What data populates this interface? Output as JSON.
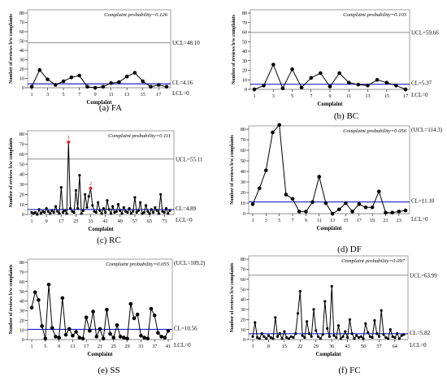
{
  "chart_data": [
    {
      "type": "line",
      "panel_label": "(a) FA",
      "annotation": "Complaint probability=0.126",
      "xlabel": "Complaint",
      "ylabel": "Number of reviews b/w complaints",
      "ylim": [
        0,
        80
      ],
      "yticks": [
        0,
        10,
        20,
        30,
        40,
        50,
        60,
        70,
        80
      ],
      "xticks": [
        "1",
        "3",
        "5",
        "7",
        "9",
        "11",
        "13",
        "15",
        "17"
      ],
      "x": [
        1,
        2,
        3,
        4,
        5,
        6,
        7,
        8,
        9,
        10,
        11,
        12,
        13,
        14,
        15,
        16,
        17,
        18
      ],
      "values": [
        1,
        19,
        9,
        3,
        7,
        11,
        13,
        1,
        0,
        1,
        5,
        6,
        12,
        16,
        7,
        1,
        3,
        1
      ],
      "ucl": {
        "value": 48.1,
        "label": "UCL=48.10"
      },
      "cl": {
        "value": 4.16,
        "label": "CL=4.16"
      },
      "lcl": {
        "value": 0,
        "label": "LCL=0"
      }
    },
    {
      "type": "line",
      "panel_label": "(b) BC",
      "annotation": "Complaint probability=0.103",
      "xlabel": "Complaint",
      "ylabel": "Number of reviews b/w complaints",
      "ylim": [
        0,
        80
      ],
      "yticks": [
        0,
        10,
        20,
        30,
        40,
        50,
        60,
        70,
        80
      ],
      "xticks": [
        "1",
        "3",
        "5",
        "7",
        "9",
        "11",
        "13",
        "15",
        "17"
      ],
      "x": [
        1,
        2,
        3,
        4,
        5,
        6,
        7,
        8,
        9,
        10,
        11,
        12,
        13,
        14,
        15,
        16,
        17
      ],
      "values": [
        0,
        4,
        26,
        1,
        21,
        2,
        12,
        17,
        3,
        17,
        7,
        5,
        4,
        10,
        7,
        4,
        0
      ],
      "ucl": {
        "value": 59.66,
        "label": "UCL=59.66"
      },
      "cl": {
        "value": 5.37,
        "label": "CL=5.37"
      },
      "lcl": {
        "value": 0,
        "label": "LCL=0"
      }
    },
    {
      "type": "line",
      "panel_label": "(c) RC",
      "annotation": "Complaint probability=0.111",
      "xlabel": "Complaint",
      "ylabel": "Number of reviews b/w complaints",
      "ylim": [
        0,
        80
      ],
      "yticks": [
        0,
        10,
        20,
        30,
        40,
        50,
        60,
        70,
        80
      ],
      "xticks": [
        "1",
        "9",
        "17",
        "25",
        "33",
        "41",
        "49",
        "57",
        "65",
        "73"
      ],
      "x": [
        1,
        2,
        3,
        4,
        5,
        6,
        7,
        8,
        9,
        10,
        11,
        12,
        13,
        14,
        15,
        16,
        17,
        18,
        19,
        20,
        21,
        22,
        23,
        24,
        25,
        26,
        27,
        28,
        29,
        30,
        31,
        32,
        33,
        34,
        35,
        36,
        37,
        38,
        39,
        40,
        41,
        42,
        43,
        44,
        45,
        46,
        47,
        48,
        49,
        50,
        51,
        52,
        53,
        54,
        55,
        56,
        57,
        58,
        59,
        60,
        61,
        62,
        63,
        64,
        65,
        66,
        67,
        68,
        69,
        70,
        71,
        72,
        73,
        74,
        75,
        76
      ],
      "values": [
        2,
        1,
        2,
        0,
        5,
        1,
        3,
        2,
        6,
        3,
        1,
        4,
        2,
        8,
        3,
        1,
        27,
        2,
        4,
        1,
        72,
        6,
        3,
        2,
        24,
        6,
        39,
        1,
        4,
        20,
        7,
        18,
        26,
        9,
        3,
        2,
        12,
        4,
        1,
        6,
        2,
        14,
        5,
        1,
        8,
        2,
        3,
        10,
        4,
        1,
        7,
        3,
        2,
        6,
        1,
        3,
        17,
        2,
        4,
        12,
        1,
        2,
        9,
        3,
        1,
        5,
        2,
        7,
        4,
        1,
        20,
        3,
        2,
        6,
        1,
        4
      ],
      "highlighted_points": [
        {
          "x": 21,
          "value": 72,
          "label": "1"
        },
        {
          "x": 33,
          "value": 26,
          "label": "2"
        }
      ],
      "ucl": {
        "value": 55.11,
        "label": "UCL=55.11"
      },
      "cl": {
        "value": 4.89,
        "label": "CL=4.89"
      },
      "lcl": {
        "value": 0,
        "label": "LCL=0"
      }
    },
    {
      "type": "line",
      "panel_label": "(d) DF",
      "annotation": "Complaint probability=0.056",
      "xlabel": "Complaint",
      "ylabel": "Number of reviews b/w complaints",
      "ylim": [
        0,
        80
      ],
      "yticks": [
        0,
        10,
        20,
        30,
        40,
        50,
        60,
        70,
        80
      ],
      "xticks": [
        "1",
        "3",
        "5",
        "7",
        "9",
        "11",
        "13",
        "15",
        "17",
        "19",
        "21",
        "23"
      ],
      "x": [
        1,
        2,
        3,
        4,
        5,
        6,
        7,
        8,
        9,
        10,
        11,
        12,
        13,
        14,
        15,
        16,
        17,
        18,
        19,
        20,
        21,
        22,
        23,
        24
      ],
      "values": [
        9,
        24,
        41,
        77,
        84,
        18,
        14,
        2,
        2,
        11,
        35,
        10,
        0,
        4,
        10,
        2,
        9,
        6,
        6,
        21,
        1,
        1,
        2,
        3
      ],
      "ucl": {
        "value": 114.3,
        "label": "(UCL=114.3)"
      },
      "cl": {
        "value": 11.1,
        "label": "CL=11.10"
      },
      "lcl": {
        "value": 0,
        "label": "LCL=0"
      }
    },
    {
      "type": "line",
      "panel_label": "(e) SS",
      "annotation": "Complaint probability=0.055",
      "xlabel": "Complaint",
      "ylabel": "Number of reviews b/w complaints",
      "ylim": [
        0,
        80
      ],
      "yticks": [
        0,
        10,
        20,
        30,
        40,
        50,
        60,
        70,
        80
      ],
      "xticks": [
        "1",
        "5",
        "9",
        "13",
        "17",
        "21",
        "25",
        "29",
        "33",
        "37",
        "41"
      ],
      "x": [
        1,
        2,
        3,
        4,
        5,
        6,
        7,
        8,
        9,
        10,
        11,
        12,
        13,
        14,
        15,
        16,
        17,
        18,
        19,
        20,
        21,
        22,
        23,
        24,
        25,
        26,
        27,
        28,
        29,
        30,
        31,
        32,
        33,
        34,
        35,
        36,
        37,
        38,
        39,
        40,
        41
      ],
      "values": [
        33,
        49,
        41,
        14,
        1,
        57,
        12,
        3,
        2,
        43,
        5,
        11,
        4,
        8,
        2,
        1,
        23,
        9,
        29,
        3,
        11,
        1,
        31,
        6,
        2,
        15,
        3,
        2,
        1,
        37,
        22,
        26,
        4,
        2,
        1,
        32,
        25,
        7,
        3,
        2,
        9
      ],
      "ucl": {
        "value": 109.2,
        "label": "(UCL=109.2)"
      },
      "cl": {
        "value": 10.56,
        "label": "CL=10.56"
      },
      "lcl": {
        "value": 0,
        "label": "LCL=0"
      }
    },
    {
      "type": "line",
      "panel_label": "(f) FC",
      "annotation": "Complaint probability=0.097",
      "xlabel": "Complaint",
      "ylabel": "Number of reviews b/w complaints",
      "ylim": [
        0,
        80
      ],
      "yticks": [
        0,
        10,
        20,
        30,
        40,
        50,
        60,
        70,
        80
      ],
      "xticks": [
        "1",
        "8",
        "15",
        "22",
        "29",
        "36",
        "43",
        "50",
        "57",
        "64"
      ],
      "x": [
        1,
        2,
        3,
        4,
        5,
        6,
        7,
        8,
        9,
        10,
        11,
        12,
        13,
        14,
        15,
        16,
        17,
        18,
        19,
        20,
        21,
        22,
        23,
        24,
        25,
        26,
        27,
        28,
        29,
        30,
        31,
        32,
        33,
        34,
        35,
        36,
        37,
        38,
        39,
        40,
        41,
        42,
        43,
        44,
        45,
        46,
        47,
        48,
        49,
        50,
        51,
        52,
        53,
        54,
        55,
        56,
        57,
        58,
        59,
        60,
        61,
        62,
        63,
        64,
        65,
        66,
        67,
        68
      ],
      "values": [
        3,
        17,
        2,
        1,
        6,
        3,
        1,
        4,
        2,
        1,
        22,
        3,
        6,
        1,
        8,
        2,
        1,
        3,
        2,
        6,
        26,
        48,
        4,
        2,
        18,
        6,
        3,
        30,
        9,
        3,
        1,
        5,
        38,
        11,
        3,
        53,
        4,
        2,
        14,
        1,
        3,
        8,
        2,
        20,
        6,
        1,
        4,
        2,
        3,
        1,
        16,
        7,
        3,
        2,
        19,
        6,
        3,
        29,
        5,
        2,
        1,
        10,
        3,
        2,
        6,
        1,
        4,
        5
      ],
      "ucl": {
        "value": 63.99,
        "label": "UCL=63.99"
      },
      "cl": {
        "value": 5.82,
        "label": "CL=5.82"
      },
      "lcl": {
        "value": 0,
        "label": "LCL=0"
      }
    }
  ],
  "colors": {
    "series": "#000000",
    "ucl": "#7f7f7f",
    "cl": "#1e22c8",
    "highlight": "#e3262c",
    "frame": "#8a8a8a"
  }
}
